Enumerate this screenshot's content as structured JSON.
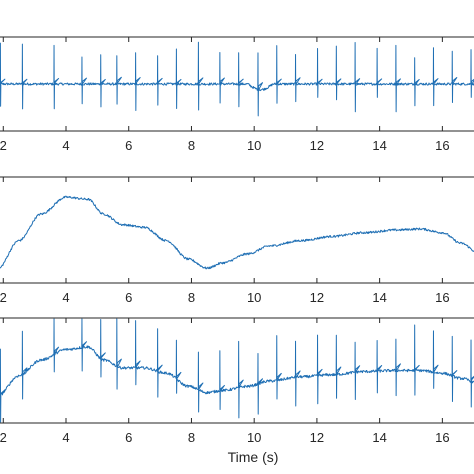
{
  "chart_data": [
    {
      "type": "line",
      "panel": "top",
      "xlabel": "",
      "xticks": [
        2,
        4,
        6,
        8,
        10,
        12,
        14,
        16
      ],
      "xlim": [
        1.8,
        17.2
      ],
      "ylim": [
        -1,
        1
      ],
      "baseline": 0.0,
      "color": "#1f6fb4",
      "spikes": [
        1.9,
        2.6,
        3.6,
        4.5,
        5.1,
        5.6,
        6.2,
        6.9,
        7.5,
        8.2,
        8.9,
        9.5,
        10.1,
        10.7,
        11.3,
        12.0,
        12.6,
        13.2,
        13.9,
        14.5,
        15.1,
        15.7,
        16.3,
        16.9
      ],
      "notes_points": [
        {
          "x": 2,
          "y": 0.0
        },
        {
          "x": 4,
          "y": 0.02
        },
        {
          "x": 6,
          "y": 0.05
        },
        {
          "x": 8,
          "y": 0.0
        },
        {
          "x": 10,
          "y": -0.15
        },
        {
          "x": 12,
          "y": 0.05
        },
        {
          "x": 14,
          "y": 0.02
        },
        {
          "x": 16,
          "y": 0.0
        }
      ]
    },
    {
      "type": "line",
      "panel": "middle",
      "xlabel": "",
      "xticks": [
        2,
        4,
        6,
        8,
        10,
        12,
        14,
        16
      ],
      "xlim": [
        1.8,
        17.2
      ],
      "ylim": [
        -1,
        1
      ],
      "color": "#1f6fb4",
      "x": [
        1.8,
        2.5,
        3.2,
        4.0,
        4.7,
        5.2,
        5.8,
        6.5,
        7.2,
        7.9,
        8.5,
        9.0,
        9.8,
        10.5,
        11.5,
        12.5,
        13.5,
        14.5,
        15.3,
        16.0,
        16.6,
        17.2
      ],
      "y": [
        -0.75,
        -0.2,
        0.3,
        0.62,
        0.58,
        0.3,
        0.1,
        0.05,
        -0.2,
        -0.55,
        -0.72,
        -0.62,
        -0.45,
        -0.3,
        -0.2,
        -0.12,
        -0.05,
        0.0,
        0.02,
        -0.05,
        -0.25,
        -0.45
      ]
    },
    {
      "type": "line",
      "panel": "bottom",
      "xlabel": "Time (s)",
      "xticks": [
        2,
        4,
        6,
        8,
        10,
        12,
        14,
        16
      ],
      "xlim": [
        1.8,
        17.2
      ],
      "ylim": [
        -1,
        1
      ],
      "color": "#1f6fb4",
      "x": [
        1.8,
        2.5,
        3.2,
        4.0,
        4.7,
        5.2,
        5.8,
        6.5,
        7.2,
        7.9,
        8.5,
        9.0,
        9.8,
        10.5,
        11.5,
        12.5,
        13.5,
        14.5,
        15.3,
        16.0,
        16.6,
        17.2
      ],
      "y": [
        -0.5,
        -0.1,
        0.2,
        0.4,
        0.45,
        0.2,
        0.05,
        0.05,
        -0.05,
        -0.3,
        -0.42,
        -0.38,
        -0.3,
        -0.2,
        -0.12,
        -0.08,
        -0.02,
        0.0,
        0.0,
        -0.05,
        -0.15,
        -0.25
      ],
      "spikes": [
        1.9,
        2.6,
        3.6,
        4.5,
        5.1,
        5.6,
        6.2,
        6.9,
        7.5,
        8.2,
        8.9,
        9.5,
        10.1,
        10.7,
        11.3,
        12.0,
        12.6,
        13.2,
        13.9,
        14.5,
        15.1,
        15.7,
        16.3,
        16.9
      ]
    }
  ]
}
